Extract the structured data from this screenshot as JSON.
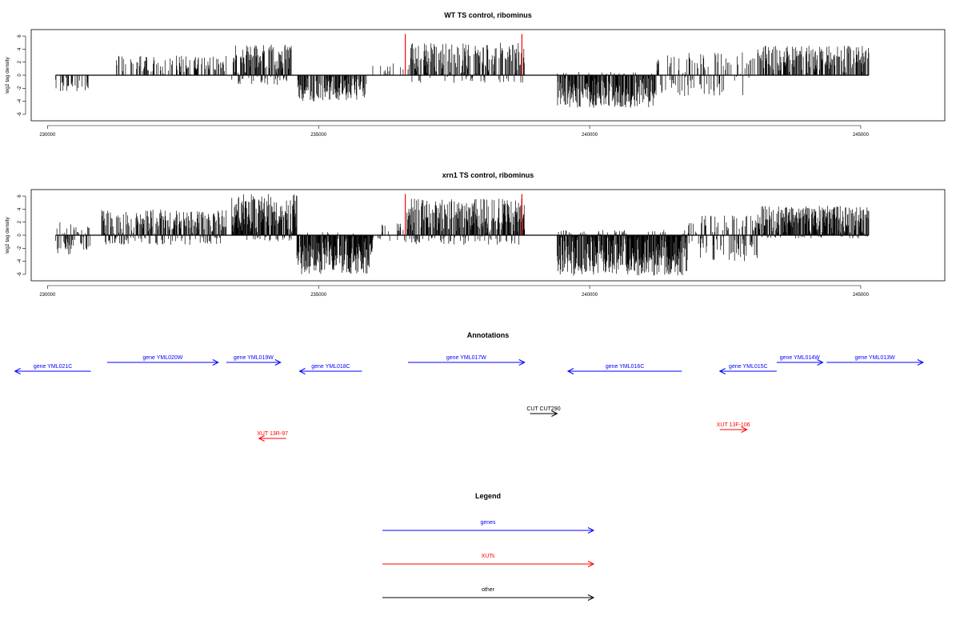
{
  "colors": {
    "genes": "#0000ff",
    "XUTs": "#ff0000",
    "other": "#000000",
    "marker": "#ff0000",
    "bar": "#000000"
  },
  "chart_data": [
    {
      "type": "bar",
      "title": "WT TS control, ribominus",
      "ylabel": "log2 tag density",
      "xlim": [
        229700,
        246550
      ],
      "ylim": [
        -6.5,
        6.5
      ],
      "x_ticks": [
        230000,
        235000,
        240000,
        245000
      ],
      "x_tick_labels": [
        "230000",
        "235000",
        "240000",
        "245000"
      ],
      "y_ticks": [
        -6,
        -4,
        -2,
        0,
        2,
        4,
        6
      ],
      "y_tick_labels": [
        "-6",
        "-4",
        "-2",
        "0",
        "2",
        "4",
        "6"
      ],
      "baseline": {
        "x_start": 230150,
        "x_end": 245150
      },
      "markers": [
        236600,
        238750
      ],
      "density_profile": [
        {
          "x_start": 230150,
          "x_end": 230800,
          "y_min": -2.6,
          "y_max": 0,
          "density": 0.35
        },
        {
          "x_start": 231200,
          "x_end": 233300,
          "y_min": 0,
          "y_max": 3.0,
          "density": 0.35
        },
        {
          "x_start": 233400,
          "x_end": 234500,
          "y_min": -1.5,
          "y_max": 4.8,
          "density": 0.9
        },
        {
          "x_start": 234600,
          "x_end": 235900,
          "y_min": -4.0,
          "y_max": 0,
          "density": 0.7
        },
        {
          "x_start": 236000,
          "x_end": 236600,
          "y_min": 0,
          "y_max": 1.8,
          "density": 0.15
        },
        {
          "x_start": 236650,
          "x_end": 238800,
          "y_min": -1.2,
          "y_max": 5.0,
          "density": 0.6
        },
        {
          "x_start": 239400,
          "x_end": 241200,
          "y_min": -5.0,
          "y_max": 0.5,
          "density": 0.85
        },
        {
          "x_start": 241200,
          "x_end": 243100,
          "y_min": -3.2,
          "y_max": 3.5,
          "density": 0.35
        },
        {
          "x_start": 243100,
          "x_end": 245150,
          "y_min": 0,
          "y_max": 4.5,
          "density": 0.6
        }
      ]
    },
    {
      "type": "bar",
      "title": "xrn1 TS control, ribominus",
      "ylabel": "log2 tag density",
      "xlim": [
        229700,
        246550
      ],
      "ylim": [
        -6.5,
        6.5
      ],
      "x_ticks": [
        230000,
        235000,
        240000,
        245000
      ],
      "x_tick_labels": [
        "230000",
        "235000",
        "240000",
        "245000"
      ],
      "y_ticks": [
        -6,
        -4,
        -2,
        0,
        2,
        4,
        6
      ],
      "y_tick_labels": [
        "-6",
        "-4",
        "-2",
        "0",
        "2",
        "4",
        "6"
      ],
      "baseline": {
        "x_start": 230150,
        "x_end": 245150
      },
      "markers": [
        236600,
        238750
      ],
      "density_profile": [
        {
          "x_start": 230150,
          "x_end": 230800,
          "y_min": -3.0,
          "y_max": 2.0,
          "density": 0.7
        },
        {
          "x_start": 231000,
          "x_end": 233300,
          "y_min": -1.5,
          "y_max": 4.0,
          "density": 0.8
        },
        {
          "x_start": 233400,
          "x_end": 234600,
          "y_min": -1.0,
          "y_max": 6.3,
          "density": 1.0
        },
        {
          "x_start": 234600,
          "x_end": 236000,
          "y_min": -6.0,
          "y_max": 0.5,
          "density": 0.9
        },
        {
          "x_start": 236000,
          "x_end": 236600,
          "y_min": -1.0,
          "y_max": 1.8,
          "density": 0.3
        },
        {
          "x_start": 236600,
          "x_end": 238800,
          "y_min": -1.5,
          "y_max": 5.6,
          "density": 0.9
        },
        {
          "x_start": 239400,
          "x_end": 241800,
          "y_min": -6.2,
          "y_max": 0.8,
          "density": 1.0
        },
        {
          "x_start": 241800,
          "x_end": 243100,
          "y_min": -4.0,
          "y_max": 3.0,
          "density": 0.6
        },
        {
          "x_start": 243100,
          "x_end": 245150,
          "y_min": -0.5,
          "y_max": 4.5,
          "density": 0.9
        }
      ]
    }
  ],
  "annotations": {
    "title": "Annotations",
    "features": [
      {
        "label": "gene YML021C",
        "type": "genes",
        "strand": "-",
        "start": 229400,
        "end": 230800,
        "row": 1
      },
      {
        "label": "gene YML020W",
        "type": "genes",
        "strand": "+",
        "start": 231100,
        "end": 233150,
        "row": 0
      },
      {
        "label": "gene YML019W",
        "type": "genes",
        "strand": "+",
        "start": 233300,
        "end": 234300,
        "row": 0
      },
      {
        "label": "gene YML018C",
        "type": "genes",
        "strand": "-",
        "start": 234650,
        "end": 235800,
        "row": 1
      },
      {
        "label": "gene YML017W",
        "type": "genes",
        "strand": "+",
        "start": 236650,
        "end": 238800,
        "row": 0
      },
      {
        "label": "gene YML016C",
        "type": "genes",
        "strand": "-",
        "start": 239600,
        "end": 241700,
        "row": 1
      },
      {
        "label": "gene YML015C",
        "type": "genes",
        "strand": "-",
        "start": 242400,
        "end": 243450,
        "row": 1
      },
      {
        "label": "gene YML014W",
        "type": "genes",
        "strand": "+",
        "start": 243450,
        "end": 244300,
        "row": 0
      },
      {
        "label": "gene YML013W",
        "type": "genes",
        "strand": "+",
        "start": 244370,
        "end": 246150,
        "row": 0
      },
      {
        "label": "CUT CUT290",
        "type": "other",
        "strand": "+",
        "start": 238900,
        "end": 239400,
        "row": 2
      },
      {
        "label": "XUT 13F-106",
        "type": "XUTs",
        "strand": "+",
        "start": 242400,
        "end": 242900,
        "row": 3
      },
      {
        "label": "XUT 13R-97",
        "type": "XUTs",
        "strand": "-",
        "start": 233900,
        "end": 234400,
        "row": 4
      }
    ]
  },
  "legend": {
    "title": "Legend",
    "items": [
      {
        "label": "genes",
        "type": "genes"
      },
      {
        "label": "XUTs",
        "type": "XUTs"
      },
      {
        "label": "other",
        "type": "other"
      }
    ]
  }
}
